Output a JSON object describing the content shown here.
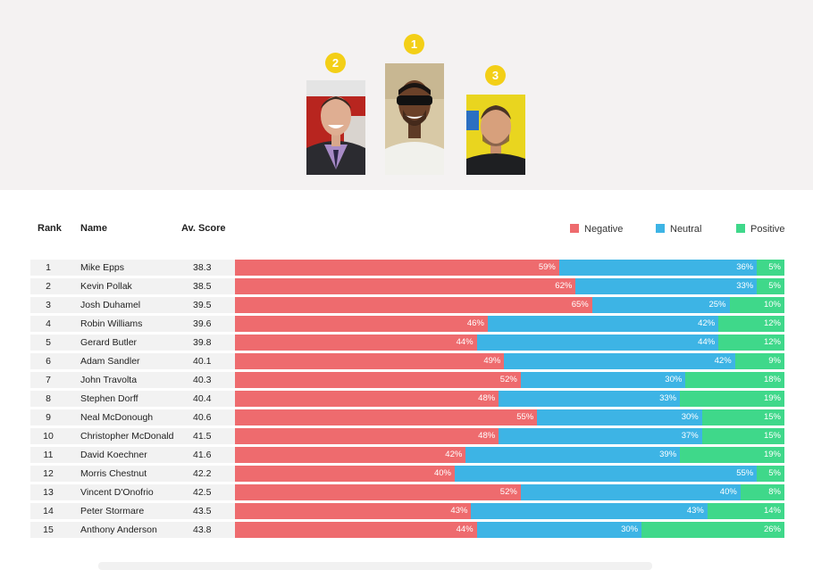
{
  "podium": [
    {
      "rank": "2",
      "name": "Kevin Pollak"
    },
    {
      "rank": "1",
      "name": "Mike Epps"
    },
    {
      "rank": "3",
      "name": "Josh Duhamel"
    }
  ],
  "colors": {
    "negative": "#ee6b6e",
    "neutral": "#3db4e5",
    "positive": "#3fd88a",
    "medal": "#f3cf17"
  },
  "chart_data": {
    "type": "bar",
    "stacked": true,
    "orientation": "horizontal",
    "columns": {
      "rank": "Rank",
      "name": "Name",
      "score": "Av. Score"
    },
    "legend": [
      "Negative",
      "Neutral",
      "Positive"
    ],
    "legend_placement": "top-right",
    "rows": [
      {
        "rank": "1",
        "name": "Mike Epps",
        "score": "38.3",
        "negative": 59,
        "neutral": 36,
        "positive": 5
      },
      {
        "rank": "2",
        "name": "Kevin Pollak",
        "score": "38.5",
        "negative": 62,
        "neutral": 33,
        "positive": 5
      },
      {
        "rank": "3",
        "name": "Josh Duhamel",
        "score": "39.5",
        "negative": 65,
        "neutral": 25,
        "positive": 10
      },
      {
        "rank": "4",
        "name": "Robin Williams",
        "score": "39.6",
        "negative": 46,
        "neutral": 42,
        "positive": 12
      },
      {
        "rank": "5",
        "name": "Gerard Butler",
        "score": "39.8",
        "negative": 44,
        "neutral": 44,
        "positive": 12
      },
      {
        "rank": "6",
        "name": "Adam Sandler",
        "score": "40.1",
        "negative": 49,
        "neutral": 42,
        "positive": 9
      },
      {
        "rank": "7",
        "name": "John Travolta",
        "score": "40.3",
        "negative": 52,
        "neutral": 30,
        "positive": 18
      },
      {
        "rank": "8",
        "name": "Stephen Dorff",
        "score": "40.4",
        "negative": 48,
        "neutral": 33,
        "positive": 19
      },
      {
        "rank": "9",
        "name": "Neal McDonough",
        "score": "40.6",
        "negative": 55,
        "neutral": 30,
        "positive": 15
      },
      {
        "rank": "10",
        "name": "Christopher McDonald",
        "score": "41.5",
        "negative": 48,
        "neutral": 37,
        "positive": 15
      },
      {
        "rank": "11",
        "name": "David Koechner",
        "score": "41.6",
        "negative": 42,
        "neutral": 39,
        "positive": 19
      },
      {
        "rank": "12",
        "name": "Morris Chestnut",
        "score": "42.2",
        "negative": 40,
        "neutral": 55,
        "positive": 5
      },
      {
        "rank": "13",
        "name": "Vincent D'Onofrio",
        "score": "42.5",
        "negative": 52,
        "neutral": 40,
        "positive": 8
      },
      {
        "rank": "14",
        "name": "Peter Stormare",
        "score": "43.5",
        "negative": 43,
        "neutral": 43,
        "positive": 14
      },
      {
        "rank": "15",
        "name": "Anthony Anderson",
        "score": "43.8",
        "negative": 44,
        "neutral": 30,
        "positive": 26
      }
    ]
  }
}
